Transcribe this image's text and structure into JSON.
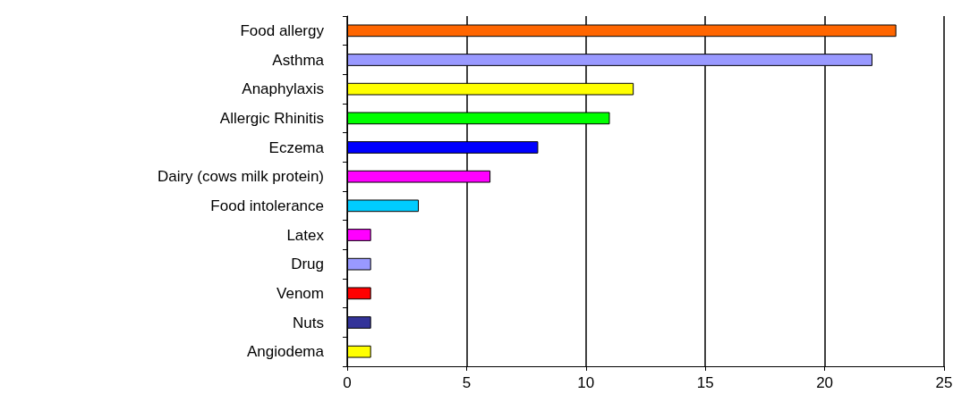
{
  "chart_data": {
    "type": "bar",
    "orientation": "horizontal",
    "categories": [
      "Food allergy",
      "Asthma",
      "Anaphylaxis",
      "Allergic Rhinitis",
      "Eczema",
      "Dairy (cows milk protein)",
      "Food intolerance",
      "Latex",
      "Drug",
      "Venom",
      "Nuts",
      "Angiodema"
    ],
    "values": [
      23,
      22,
      12,
      11,
      8,
      6,
      3,
      1,
      1,
      1,
      1,
      1
    ],
    "colors": [
      "#ff6600",
      "#9999ff",
      "#ffff00",
      "#00ff00",
      "#0000ff",
      "#ff00ff",
      "#00ccff",
      "#ff00ff",
      "#9999ff",
      "#ff0000",
      "#333399",
      "#ffff00"
    ],
    "xlim": [
      0,
      25
    ],
    "xticks": [
      0,
      5,
      10,
      15,
      20,
      25
    ],
    "grid": "x"
  }
}
